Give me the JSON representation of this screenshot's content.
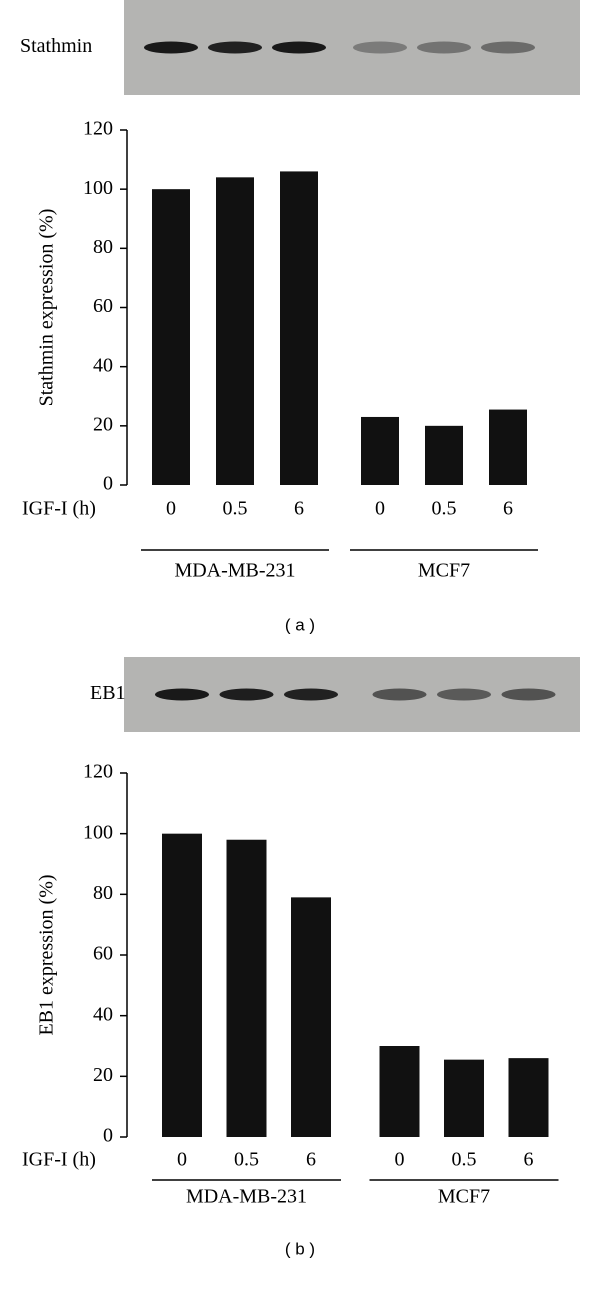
{
  "chart_data": [
    {
      "type": "bar",
      "blot_label": "Stathmin",
      "y_label": "Stathmin expression (%)",
      "x_label": "IGF-I (h)",
      "categories": [
        "0",
        "0.5",
        "6",
        "0",
        "0.5",
        "6"
      ],
      "values": [
        100,
        104,
        106,
        23,
        20,
        25.5
      ],
      "groups": [
        "MDA-MB-231",
        "MCF7"
      ],
      "color": "#111111",
      "ylim": [
        0,
        120
      ],
      "yticks": [
        0,
        20,
        40,
        60,
        80,
        100,
        120
      ],
      "caption": "( a )"
    },
    {
      "type": "bar",
      "blot_label": "EB1",
      "y_label": "EB1 expression (%)",
      "x_label": "IGF-I (h)",
      "categories": [
        "0",
        "0.5",
        "6",
        "0",
        "0.5",
        "6"
      ],
      "values": [
        100,
        98,
        79,
        30,
        25.5,
        26
      ],
      "groups": [
        "MDA-MB-231",
        "MCF7"
      ],
      "color": "#111111",
      "ylim": [
        0,
        120
      ],
      "yticks": [
        0,
        20,
        40,
        60,
        80,
        100,
        120
      ],
      "caption": "( b )"
    }
  ]
}
